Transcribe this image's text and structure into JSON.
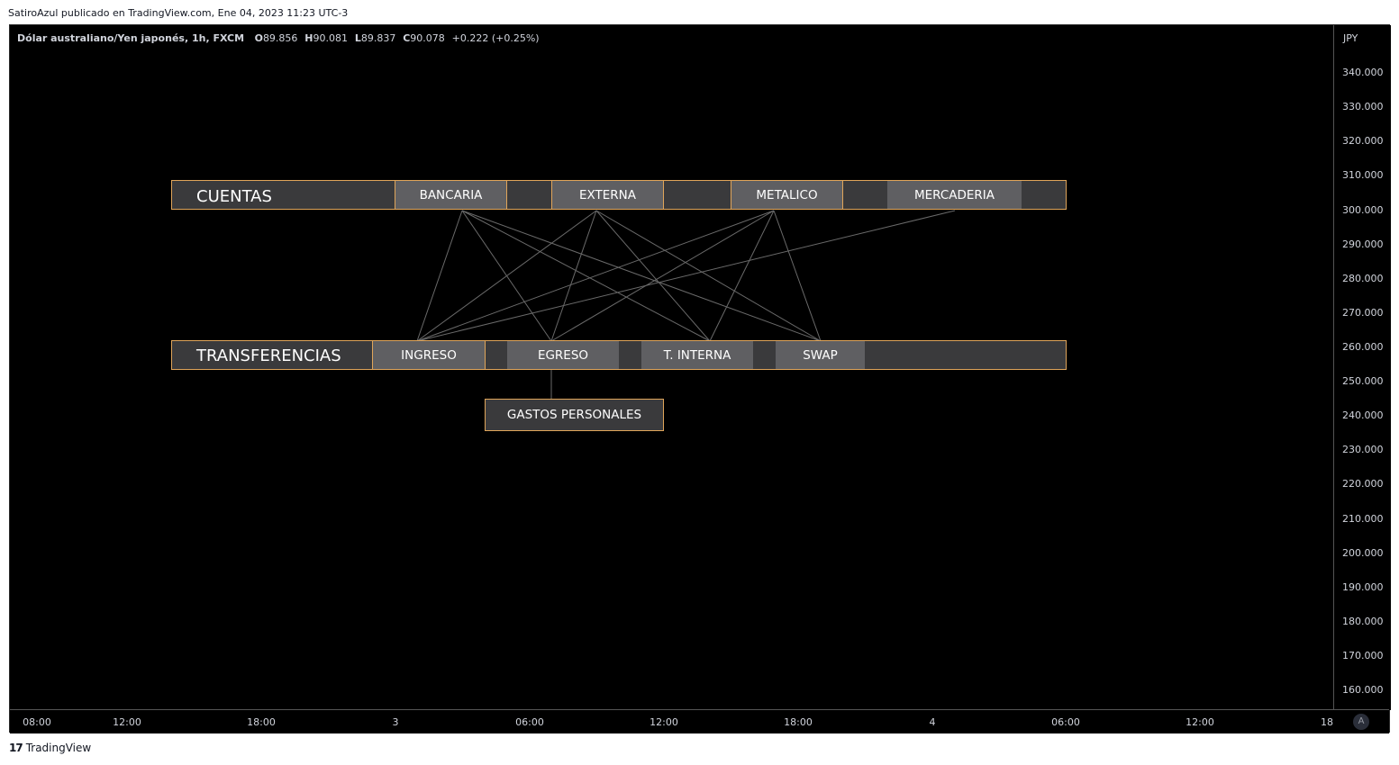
{
  "published_line": "SatiroAzul publicado en TradingView.com, Ene 04, 2023 11:23 UTC-3",
  "symbol": {
    "name": "Dólar australiano/Yen japonés, 1h, FXCM",
    "o_label": "O",
    "o_value": "89.856",
    "h_label": "H",
    "h_value": "90.081",
    "l_label": "L",
    "l_value": "89.837",
    "c_label": "C",
    "c_value": "90.078",
    "change": "+0.222 (+0.25%)"
  },
  "currency": "JPY",
  "price_labels": [
    "340.000",
    "330.000",
    "320.000",
    "310.000",
    "300.000",
    "290.000",
    "280.000",
    "270.000",
    "260.000",
    "250.000",
    "240.000",
    "230.000",
    "220.000",
    "210.000",
    "200.000",
    "190.000",
    "180.000",
    "170.000",
    "160.000"
  ],
  "time_labels": [
    "08:00",
    "12:00",
    "18:00",
    "3",
    "06:00",
    "12:00",
    "18:00",
    "4",
    "06:00",
    "12:00",
    "18"
  ],
  "auto_button": "A",
  "diagram": {
    "cuentas_title": "CUENTAS",
    "cuentas": [
      "BANCARIA",
      "EXTERNA",
      "METALICO",
      "MERCADERIA"
    ],
    "transferencias_title": "TRANSFERENCIAS",
    "transferencias": [
      "INGRESO",
      "EGRESO",
      "T. INTERNA",
      "SWAP"
    ],
    "gastos": "GASTOS PERSONALES",
    "border_color": "#e0a55a",
    "row_color": "#3a3a3c",
    "box_color": "#5f5f62"
  },
  "branding": "TradingView"
}
